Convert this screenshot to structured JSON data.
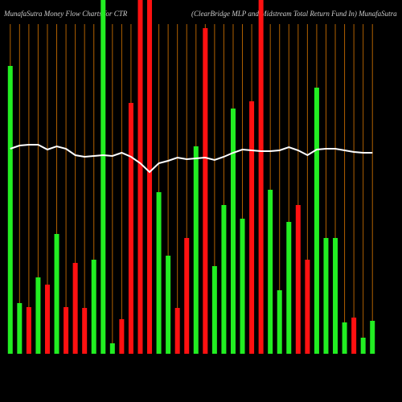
{
  "chart_data": {
    "type": "bar",
    "title": "MunafaSutra  Money Flow  Charts for CTR",
    "subtitle": "(ClearBridge  MLP  and Midstream Total Return  Fund In) MunafaSutra",
    "categories": [
      null,
      null,
      null,
      null,
      null,
      null,
      null,
      null,
      null,
      null,
      null,
      null,
      null,
      null,
      null,
      null,
      null,
      null,
      null,
      null,
      null,
      null,
      null,
      null,
      null,
      null,
      null,
      null,
      null,
      null,
      null,
      null,
      null,
      null,
      null,
      null,
      null,
      null,
      null,
      null
    ],
    "values": [
      358,
      63,
      58,
      95,
      86,
      149,
      58,
      113,
      57,
      117,
      440,
      13,
      43,
      312,
      440,
      440,
      201,
      122,
      57,
      144,
      258,
      405,
      109,
      185,
      305,
      168,
      314,
      440,
      204,
      79,
      164,
      185,
      117,
      331,
      144,
      144,
      39,
      45,
      20,
      41
    ],
    "colors": [
      "#22ee22",
      "#22ee22",
      "#ff1111",
      "#22ee22",
      "#ff1111",
      "#22ee22",
      "#ff1111",
      "#ff1111",
      "#ff1111",
      "#22ee22",
      "#22ee22",
      "#22ee22",
      "#ff1111",
      "#ff1111",
      "#ff1111",
      "#ff1111",
      "#22ee22",
      "#22ee22",
      "#ff1111",
      "#ff1111",
      "#22ee22",
      "#ff1111",
      "#22ee22",
      "#22ee22",
      "#22ee22",
      "#22ee22",
      "#ff1111",
      "#ff1111",
      "#22ee22",
      "#22ee22",
      "#22ee22",
      "#ff1111",
      "#ff1111",
      "#22ee22",
      "#22ee22",
      "#22ee22",
      "#22ee22",
      "#ff1111",
      "#22ee22",
      "#22ee22"
    ],
    "line": {
      "color": "#ffffff",
      "axis": "y2",
      "values": [
        255,
        259,
        260,
        260,
        254,
        258,
        255,
        247,
        245,
        246,
        247,
        246,
        250,
        245,
        237,
        226,
        237,
        240,
        244,
        242,
        243,
        244,
        241,
        245,
        250,
        254,
        253,
        252,
        252,
        253,
        257,
        253,
        247,
        254,
        255,
        255,
        253,
        251,
        250,
        250
      ]
    },
    "ylim": [
      0,
      440
    ],
    "y2lim": [
      0,
      440
    ],
    "grid": true,
    "grid_color": "#b06000"
  }
}
